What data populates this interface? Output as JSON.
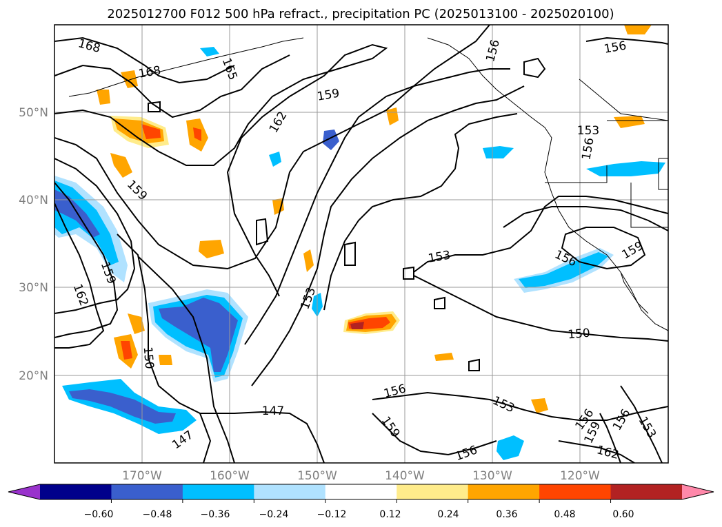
{
  "title": "2025012700 F012 500 hPa refract., precipitation PC (2025013100 - 2025020100)",
  "map": {
    "lat_labels": [
      "50°N",
      "40°N",
      "30°N",
      "20°N"
    ],
    "lon_labels": [
      "170°W",
      "160°W",
      "150°W",
      "140°W",
      "130°W",
      "120°W"
    ],
    "lat_range": [
      10,
      60
    ],
    "lon_range": [
      -180,
      -110
    ],
    "gridlines": true
  },
  "colorbar": {
    "ticks": [
      "−0.60",
      "−0.48",
      "−0.36",
      "−0.24",
      "−0.12",
      "0.12",
      "0.24",
      "0.36",
      "0.48",
      "0.60"
    ],
    "colors": [
      "#9932cc",
      "#00008b",
      "#3a5fcd",
      "#00bfff",
      "#b0e2ff",
      "#ffffff",
      "#ffec8b",
      "#ffa500",
      "#ff4500",
      "#b22222",
      "#ff88aa"
    ],
    "extend": "both"
  },
  "contour_labels": [
    {
      "text": "168"
    },
    {
      "text": "168"
    },
    {
      "text": "165"
    },
    {
      "text": "159"
    },
    {
      "text": "162"
    },
    {
      "text": "159"
    },
    {
      "text": "159"
    },
    {
      "text": "162"
    },
    {
      "text": "150"
    },
    {
      "text": "147"
    },
    {
      "text": "147"
    },
    {
      "text": "153"
    },
    {
      "text": "153"
    },
    {
      "text": "156"
    },
    {
      "text": "159"
    },
    {
      "text": "156"
    },
    {
      "text": "156"
    },
    {
      "text": "153"
    },
    {
      "text": "156"
    },
    {
      "text": "159"
    },
    {
      "text": "156"
    },
    {
      "text": "150"
    },
    {
      "text": "153"
    },
    {
      "text": "156"
    },
    {
      "text": "159"
    },
    {
      "text": "156"
    },
    {
      "text": "153"
    },
    {
      "text": "162"
    },
    {
      "text": "156"
    }
  ]
}
